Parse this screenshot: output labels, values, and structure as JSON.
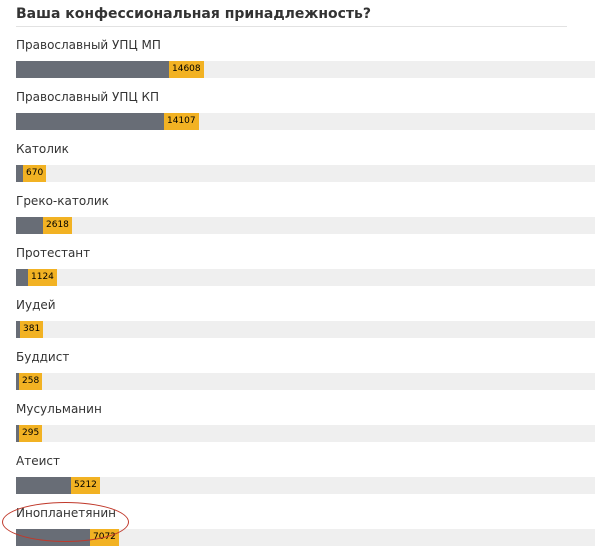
{
  "poll": {
    "title": "Ваша конфессиональная принадлежность?",
    "max_value": 14608,
    "options": [
      {
        "label": "Православный УПЦ МП",
        "count": "14608",
        "value": 14608
      },
      {
        "label": "Православный УПЦ КП",
        "count": "14107",
        "value": 14107
      },
      {
        "label": "Католик",
        "count": "670",
        "value": 670
      },
      {
        "label": "Греко-католик",
        "count": "2618",
        "value": 2618
      },
      {
        "label": "Протестант",
        "count": "1124",
        "value": 1124
      },
      {
        "label": "Иудей",
        "count": "381",
        "value": 381
      },
      {
        "label": "Буддист",
        "count": "258",
        "value": 258
      },
      {
        "label": "Мусульманин",
        "count": "295",
        "value": 295
      },
      {
        "label": "Атеист",
        "count": "5212",
        "value": 5212
      },
      {
        "label": "Инопланетянин",
        "count": "7072",
        "value": 7072
      }
    ],
    "highlighted_option": "Инопланетянин"
  },
  "colors": {
    "bar_fill": "#686d76",
    "count_badge": "#f2b223",
    "track": "#efefef",
    "highlight": "#c0392b"
  }
}
